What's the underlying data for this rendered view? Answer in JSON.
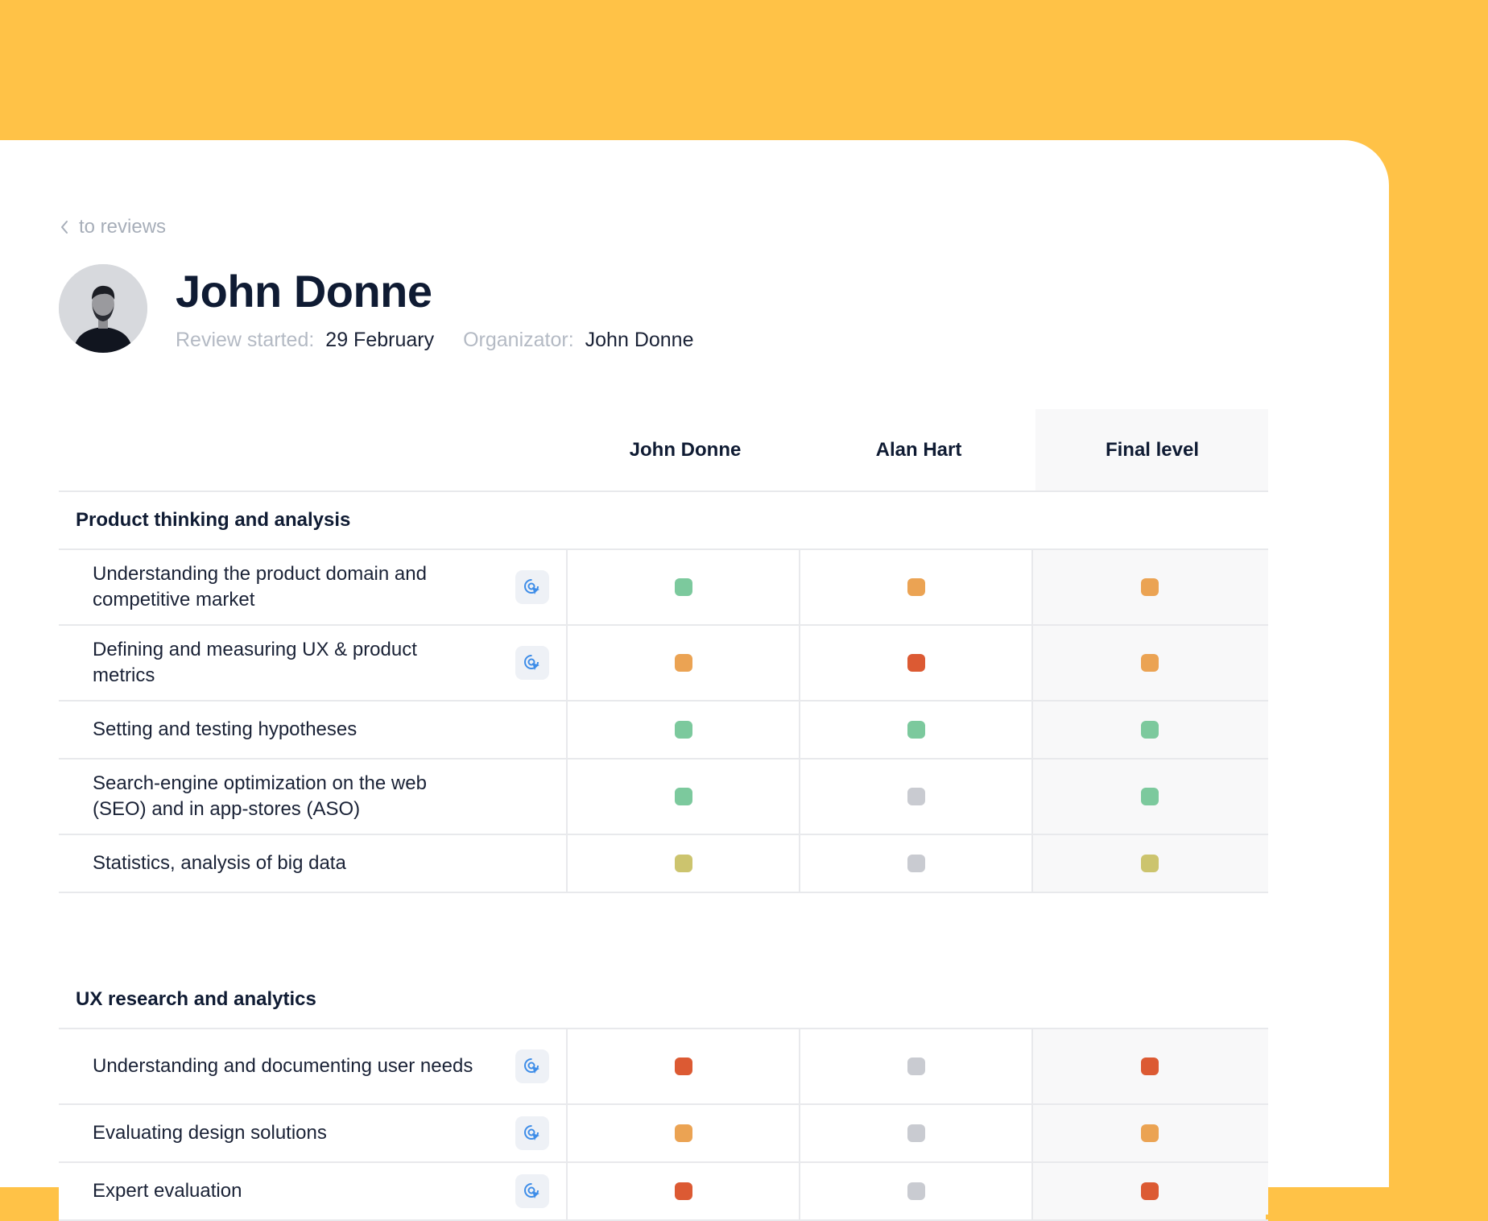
{
  "colors": {
    "background": "#FFC247",
    "green": "#7CC99D",
    "orange": "#EBA353",
    "red": "#DC5A33",
    "olive": "#CCC46E",
    "gray": "#C9CBD1"
  },
  "nav": {
    "back_label": "to reviews"
  },
  "profile": {
    "name": "John Donne",
    "review_started_label": "Review started:",
    "review_started_value": "29 February",
    "organizator_label": "Organizator:",
    "organizator_value": "John Donne"
  },
  "table": {
    "columns": [
      "John Donne",
      "Alan Hart",
      "Final level"
    ],
    "sections": [
      {
        "title": "Product thinking and analysis",
        "rows": [
          {
            "skill": "Understanding the product domain and competitive market",
            "hint": true,
            "scores": [
              "green",
              "orange",
              "orange"
            ]
          },
          {
            "skill": "Defining and measuring UX & product metrics",
            "hint": true,
            "scores": [
              "orange",
              "red",
              "orange"
            ]
          },
          {
            "skill": "Setting and testing hypotheses",
            "hint": false,
            "scores": [
              "green",
              "green",
              "green"
            ]
          },
          {
            "skill": "Search-engine optimization on the web (SEO) and in app-stores (ASO)",
            "hint": false,
            "scores": [
              "green",
              "gray",
              "green"
            ]
          },
          {
            "skill": "Statistics, analysis of big data",
            "hint": false,
            "scores": [
              "olive",
              "gray",
              "olive"
            ]
          }
        ]
      },
      {
        "title": "UX research and analytics",
        "rows": [
          {
            "skill": "Understanding and documenting user needs",
            "hint": true,
            "scores": [
              "red",
              "gray",
              "red"
            ]
          },
          {
            "skill": "Evaluating design solutions",
            "hint": true,
            "scores": [
              "orange",
              "gray",
              "orange"
            ]
          },
          {
            "skill": "Expert evaluation",
            "hint": true,
            "scores": [
              "red",
              "gray",
              "red"
            ]
          }
        ]
      }
    ]
  }
}
